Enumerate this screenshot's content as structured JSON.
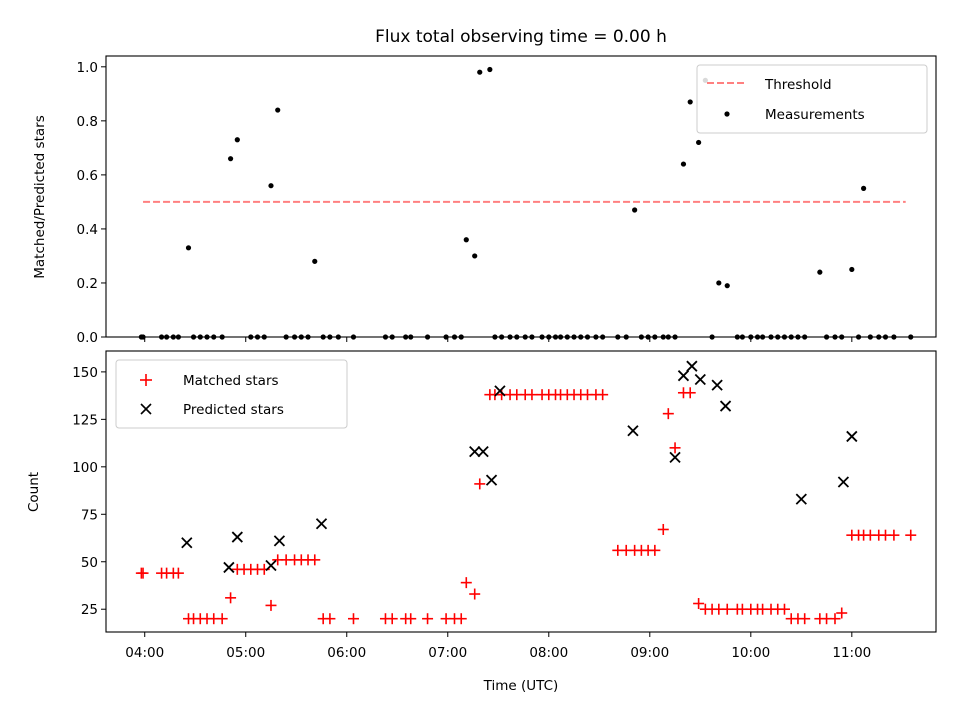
{
  "chart_data": [
    {
      "type": "scatter",
      "title": "Flux total observing time = 0.00 h",
      "xlabel": "",
      "ylabel": "Matched/Predicted stars",
      "xlim": [
        "03:37",
        "11:50"
      ],
      "ylim": [
        0,
        1.04
      ],
      "yticks": [
        "0.0",
        "0.2",
        "0.4",
        "0.6",
        "0.8",
        "1.0"
      ],
      "grid": false,
      "legend_position": "top-right",
      "series": [
        {
          "name": "Threshold",
          "kind": "line",
          "color": "#ff8080",
          "dash": true,
          "x": [
            "03:59",
            "11:32"
          ],
          "values": [
            0.5,
            0.5
          ]
        },
        {
          "name": "Measurements",
          "kind": "points",
          "color": "#000000",
          "x": [
            "03:58",
            "03:59",
            "04:10",
            "04:13",
            "04:17",
            "04:20",
            "04:26",
            "04:29",
            "04:33",
            "04:37",
            "04:41",
            "04:46",
            "04:51",
            "04:55",
            "05:03",
            "05:07",
            "05:11",
            "05:15",
            "05:19",
            "05:24",
            "05:29",
            "05:33",
            "05:37",
            "05:41",
            "05:46",
            "05:50",
            "05:55",
            "06:04",
            "06:23",
            "06:27",
            "06:35",
            "06:38",
            "06:48",
            "06:59",
            "07:04",
            "07:08",
            "07:11",
            "07:16",
            "07:19",
            "07:25",
            "07:28",
            "07:32",
            "07:37",
            "07:41",
            "07:46",
            "07:50",
            "07:56",
            "08:00",
            "08:04",
            "08:07",
            "08:11",
            "08:15",
            "08:19",
            "08:23",
            "08:28",
            "08:32",
            "08:41",
            "08:46",
            "08:51",
            "08:55",
            "08:59",
            "09:03",
            "09:08",
            "09:11",
            "09:15",
            "09:20",
            "09:24",
            "09:29",
            "09:33",
            "09:37",
            "09:41",
            "09:46",
            "09:52",
            "09:55",
            "10:00",
            "10:04",
            "10:07",
            "10:12",
            "10:16",
            "10:20",
            "10:24",
            "10:28",
            "10:32",
            "10:41",
            "10:45",
            "10:50",
            "10:54",
            "11:00",
            "11:04",
            "11:07",
            "11:11",
            "11:16",
            "11:20",
            "11:25",
            "11:35"
          ],
          "values": [
            0,
            0,
            0,
            0,
            0,
            0,
            0.33,
            0,
            0,
            0,
            0,
            0,
            0.66,
            0.73,
            0,
            0,
            0,
            0.56,
            0.84,
            0,
            0,
            0,
            0,
            0.28,
            0,
            0,
            0,
            0,
            0,
            0,
            0,
            0,
            0,
            0,
            0,
            0,
            0.36,
            0.3,
            0.98,
            0.99,
            0,
            0,
            0,
            0,
            0,
            0,
            0,
            0,
            0,
            0,
            0,
            0,
            0,
            0,
            0,
            0,
            0,
            0,
            0.47,
            0,
            0,
            0,
            0,
            0,
            0,
            0.64,
            0.87,
            0.72,
            0.95,
            0,
            0.2,
            0.19,
            0,
            0,
            0,
            0,
            0,
            0,
            0,
            0,
            0,
            0,
            0,
            0.24,
            0,
            0,
            0,
            0.25,
            0,
            0.55,
            0,
            0,
            0,
            0,
            0
          ]
        }
      ]
    },
    {
      "type": "scatter",
      "title": "",
      "xlabel": "Time (UTC)",
      "ylabel": "Count",
      "xlim": [
        "03:37",
        "11:50"
      ],
      "ylim": [
        13,
        161
      ],
      "xticks": [
        "04:00",
        "05:00",
        "06:00",
        "07:00",
        "08:00",
        "09:00",
        "10:00",
        "11:00"
      ],
      "yticks": [
        "25",
        "50",
        "75",
        "100",
        "125",
        "150"
      ],
      "grid": false,
      "legend_position": "top-left",
      "series": [
        {
          "name": "Matched stars",
          "marker": "plus",
          "color": "#ff0000",
          "x": [
            "03:58",
            "03:59",
            "04:10",
            "04:13",
            "04:17",
            "04:20",
            "04:26",
            "04:29",
            "04:33",
            "04:37",
            "04:41",
            "04:46",
            "04:51",
            "04:55",
            "04:59",
            "05:03",
            "05:07",
            "05:11",
            "05:15",
            "05:19",
            "05:24",
            "05:29",
            "05:33",
            "05:37",
            "05:41",
            "05:46",
            "05:50",
            "06:04",
            "06:23",
            "06:27",
            "06:35",
            "06:38",
            "06:48",
            "06:59",
            "07:04",
            "07:08",
            "07:11",
            "07:16",
            "07:19",
            "07:25",
            "07:28",
            "07:32",
            "07:37",
            "07:41",
            "07:46",
            "07:50",
            "07:56",
            "08:00",
            "08:04",
            "08:07",
            "08:11",
            "08:15",
            "08:19",
            "08:23",
            "08:28",
            "08:32",
            "08:41",
            "08:46",
            "08:51",
            "08:55",
            "08:59",
            "09:03",
            "09:08",
            "09:11",
            "09:15",
            "09:20",
            "09:24",
            "09:29",
            "09:33",
            "09:37",
            "09:41",
            "09:46",
            "09:52",
            "09:55",
            "10:00",
            "10:04",
            "10:07",
            "10:12",
            "10:16",
            "10:20",
            "10:24",
            "10:28",
            "10:32",
            "10:41",
            "10:45",
            "10:50",
            "10:54",
            "11:00",
            "11:04",
            "11:07",
            "11:11",
            "11:16",
            "11:20",
            "11:25",
            "11:35"
          ],
          "values": [
            44,
            44,
            44,
            44,
            44,
            44,
            20,
            20,
            20,
            20,
            20,
            20,
            31,
            46,
            46,
            46,
            46,
            46,
            27,
            51,
            51,
            51,
            51,
            51,
            51,
            20,
            20,
            20,
            20,
            20,
            20,
            20,
            20,
            20,
            20,
            20,
            39,
            33,
            91,
            138,
            138,
            138,
            138,
            138,
            138,
            138,
            138,
            138,
            138,
            138,
            138,
            138,
            138,
            138,
            138,
            138,
            56,
            56,
            56,
            56,
            56,
            56,
            67,
            128,
            110,
            139,
            139,
            28,
            25,
            25,
            25,
            25,
            25,
            25,
            25,
            25,
            25,
            25,
            25,
            25,
            20,
            20,
            20,
            20,
            20,
            20,
            23,
            64,
            64,
            64,
            64,
            64,
            64,
            64,
            64
          ]
        },
        {
          "name": "Predicted stars",
          "marker": "x",
          "color": "#000000",
          "x": [
            "04:25",
            "04:50",
            "04:55",
            "05:15",
            "05:20",
            "05:45",
            "07:16",
            "07:21",
            "07:26",
            "07:31",
            "08:50",
            "09:15",
            "09:20",
            "09:25",
            "09:30",
            "09:40",
            "09:45",
            "10:30",
            "10:55",
            "11:00"
          ],
          "values": [
            60,
            47,
            63,
            48,
            61,
            70,
            108,
            108,
            93,
            140,
            119,
            105,
            148,
            153,
            146,
            143,
            132,
            83,
            92,
            116
          ]
        }
      ]
    }
  ]
}
